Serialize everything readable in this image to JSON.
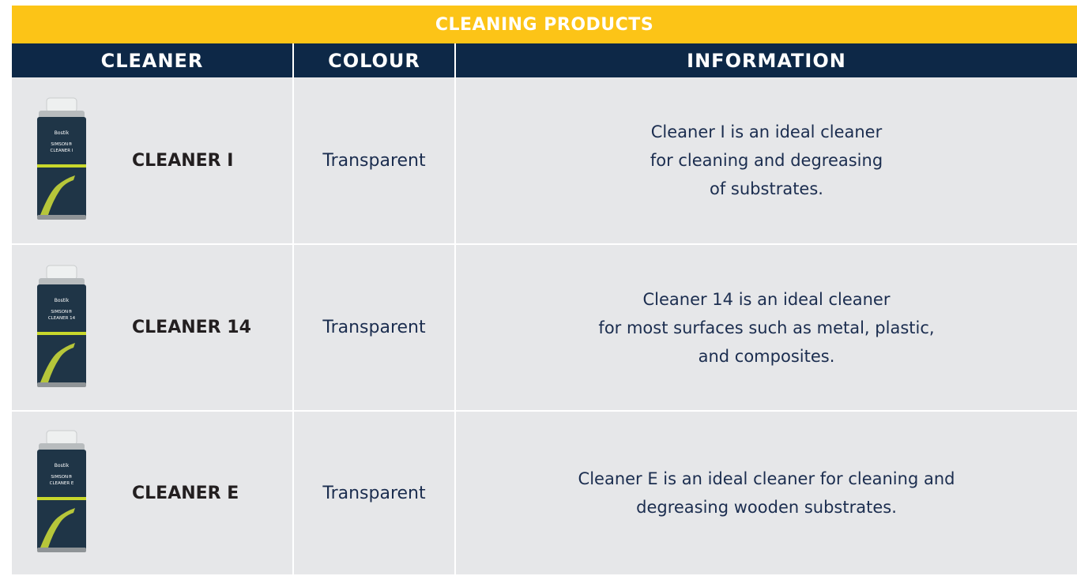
{
  "title": "CLEANING PRODUCTS",
  "table": {
    "header": [
      "CLEANER",
      "COLOUR",
      "INFORMATION"
    ],
    "rows": [
      {
        "image": {
          "brand": "Bostik",
          "label": [
            "SIMSON®",
            "CLEANER I"
          ]
        },
        "cleaner": "CLEANER I",
        "colour": "Transparent",
        "information": [
          "Cleaner I is an ideal cleaner",
          "for cleaning and degreasing",
          "of substrates."
        ]
      },
      {
        "image": {
          "brand": "Bostik",
          "label": [
            "SIMSON®",
            "CLEANER 14"
          ]
        },
        "cleaner": "CLEANER 14",
        "colour": "Transparent",
        "information": [
          "Cleaner 14 is an ideal cleaner",
          "for most surfaces such as metal,  plastic,",
          "and composites."
        ]
      },
      {
        "image": {
          "brand": "Bostik",
          "label": [
            "SIMSON®",
            "CLEANER E"
          ]
        },
        "cleaner": "CLEANER E",
        "colour": "Transparent",
        "information": [
          "Cleaner E is an ideal cleaner for cleaning and",
          "degreasing  wooden substrates."
        ]
      }
    ]
  }
}
